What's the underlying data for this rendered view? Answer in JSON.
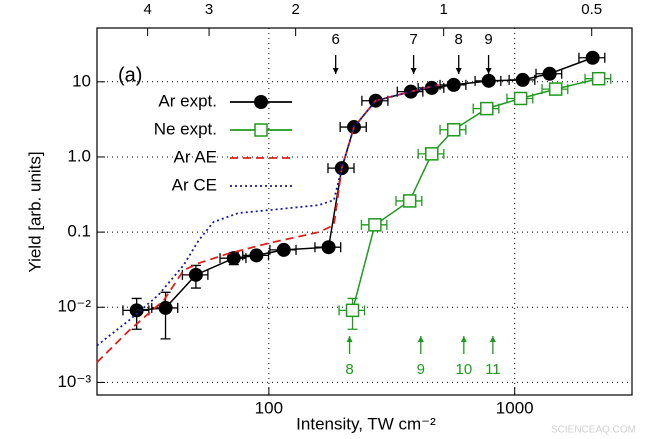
{
  "chart_data": {
    "type": "scatter",
    "xscale": "log",
    "yscale": "log",
    "grid": true,
    "legend": "upper left",
    "xlabel": "Intensity, TW cm⁻²",
    "ylabel": "Yield [arb. units]",
    "panel_label": "(a)",
    "watermark": "SCIENCEAQ.COM",
    "xlim": [
      20,
      3000
    ],
    "ylim": [
      0.00068,
      52
    ],
    "xticks": [
      100,
      1000
    ],
    "yticks": [
      {
        "value": 0.001,
        "label": "10⁻³"
      },
      {
        "value": 0.01,
        "label": "10⁻²"
      },
      {
        "value": 0.1,
        "label": "0.1"
      },
      {
        "value": 1,
        "label": "1.0"
      },
      10
    ],
    "x2lim": [
      5.07,
      0.414
    ],
    "x2ticks": [
      4,
      3,
      2,
      1,
      0.5
    ],
    "top_arrows": {
      "color": "#000000",
      "items": [
        {
          "label": "6",
          "x": 187
        },
        {
          "label": "7",
          "x": 388
        },
        {
          "label": "8",
          "x": 592
        },
        {
          "label": "9",
          "x": 783
        }
      ]
    },
    "bottom_arrows": {
      "color": "#1e9a1e",
      "items": [
        {
          "label": "8",
          "x": 213
        },
        {
          "label": "9",
          "x": 415
        },
        {
          "label": "10",
          "x": 621
        },
        {
          "label": "11",
          "x": 815
        }
      ]
    },
    "series": [
      {
        "name": "Ar expt.",
        "color": "#000000",
        "marker": "circle",
        "linestyle": "solid",
        "x": [
          29,
          38,
          50.5,
          72,
          89,
          115,
          175,
          198,
          222,
          272,
          378,
          460,
          565,
          784,
          1078,
          1387,
          2075
        ],
        "values": [
          0.0091,
          0.0098,
          0.027,
          0.045,
          0.049,
          0.058,
          0.063,
          0.71,
          2.5,
          5.6,
          7.4,
          8.3,
          9.1,
          10.3,
          10.6,
          12.8,
          20.9
        ],
        "xerr": [
          3.5,
          4.6,
          6,
          8.7,
          10.7,
          14,
          21,
          24,
          27,
          33,
          45,
          55,
          68,
          94,
          129,
          166,
          250
        ],
        "yerr": [
          0.004,
          0.006,
          0.009,
          0.008,
          null,
          null,
          null,
          null,
          null,
          null,
          null,
          null,
          null,
          null,
          null,
          null,
          null
        ]
      },
      {
        "name": "Ne expt.",
        "color": "#1e9a1e",
        "marker": "square",
        "linestyle": "solid",
        "x": [
          219,
          270,
          374,
          460,
          565,
          770,
          1057,
          1468,
          2195
        ],
        "values": [
          0.0091,
          0.125,
          0.26,
          1.1,
          2.3,
          4.4,
          6.0,
          8.0,
          11.0
        ],
        "xerr": [
          26,
          32,
          45,
          55,
          68,
          92,
          127,
          176,
          263
        ],
        "yerr": [
          0.004,
          null,
          null,
          null,
          null,
          null,
          null,
          null,
          null
        ]
      },
      {
        "name": "Ar AE",
        "color": "#e0201b",
        "marker": "none",
        "linestyle": "dashed",
        "x": [
          20,
          27,
          37.4,
          45,
          51.9,
          68.7,
          100,
          160,
          184,
          198,
          222,
          272,
          378,
          491
        ],
        "values": [
          0.00185,
          0.0049,
          0.0124,
          0.031,
          0.0386,
          0.052,
          0.0713,
          0.1,
          0.124,
          0.71,
          2.5,
          5.6,
          7.4,
          9.1
        ]
      },
      {
        "name": "Ar CE",
        "color": "#1a1aa0",
        "marker": "none",
        "linestyle": "dotted",
        "x": [
          20,
          27,
          35.5,
          45,
          51.9,
          59.5,
          75,
          100,
          160,
          184,
          198,
          222,
          272,
          378,
          491
        ],
        "values": [
          0.0031,
          0.0067,
          0.0145,
          0.0363,
          0.078,
          0.136,
          0.179,
          0.196,
          0.229,
          0.267,
          0.71,
          2.5,
          5.6,
          7.4,
          9.1
        ]
      }
    ]
  }
}
